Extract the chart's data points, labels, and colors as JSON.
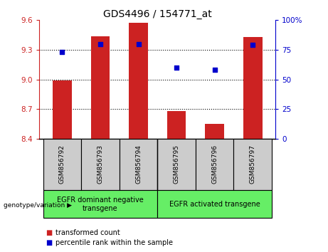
{
  "title": "GDS4496 / 154771_at",
  "samples": [
    "GSM856792",
    "GSM856793",
    "GSM856794",
    "GSM856795",
    "GSM856796",
    "GSM856797"
  ],
  "bar_values": [
    8.99,
    9.44,
    9.57,
    8.68,
    8.55,
    9.43
  ],
  "bar_bottom": 8.4,
  "percentile_values": [
    73,
    80,
    80,
    60,
    58,
    79
  ],
  "ylim_left": [
    8.4,
    9.6
  ],
  "yticks_left": [
    8.4,
    8.7,
    9.0,
    9.3,
    9.6
  ],
  "yticks_right": [
    0,
    25,
    50,
    75,
    100
  ],
  "bar_color": "#cc2222",
  "marker_color": "#0000cc",
  "group1_label": "EGFR dominant negative\ntransgene",
  "group2_label": "EGFR activated transgene",
  "group1_indices": [
    0,
    1,
    2
  ],
  "group2_indices": [
    3,
    4,
    5
  ],
  "group_bg_color": "#66ee66",
  "sample_bg_color": "#cccccc",
  "legend_bar_label": "transformed count",
  "legend_marker_label": "percentile rank within the sample",
  "genotype_label": "genotype/variation"
}
